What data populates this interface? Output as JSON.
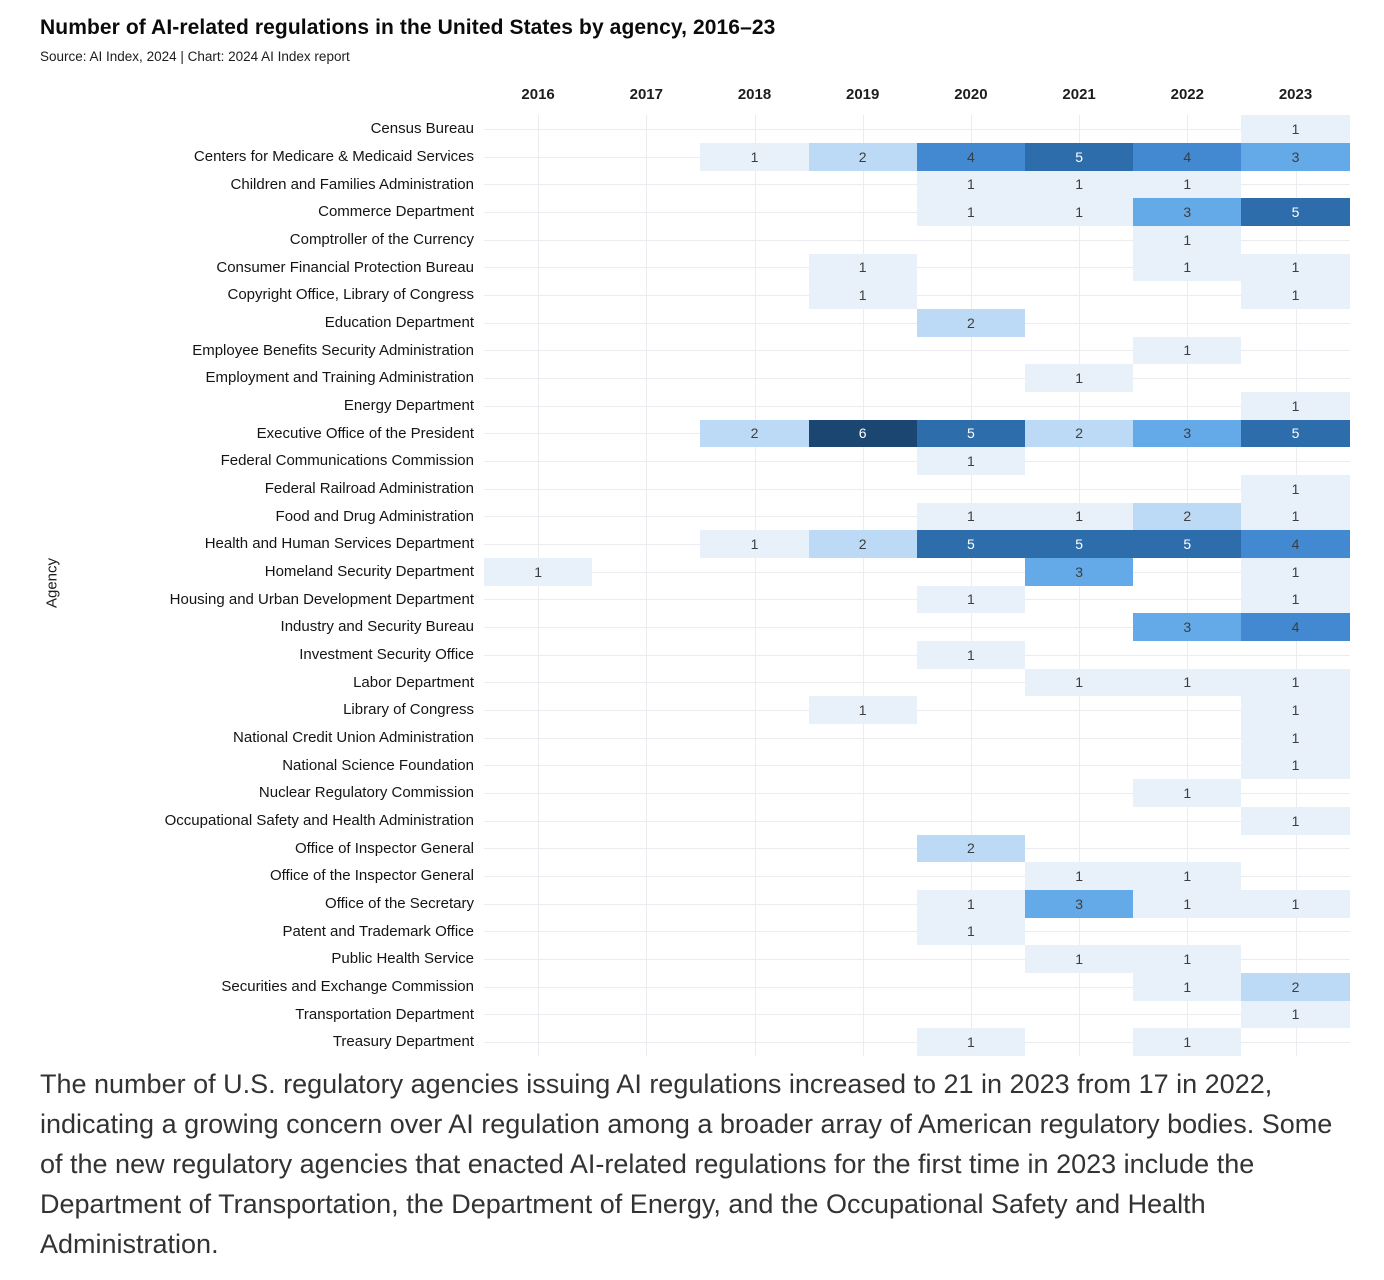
{
  "header": {
    "title": "Number of AI-related regulations in the United States by agency, 2016–23",
    "source": "Source: AI Index, 2024 | Chart: 2024 AI Index report"
  },
  "chart_data": {
    "type": "heatmap",
    "title": "Number of AI-related regulations in the United States by agency, 2016–23",
    "xlabel": "",
    "ylabel": "Agency",
    "x": [
      "2016",
      "2017",
      "2018",
      "2019",
      "2020",
      "2021",
      "2022",
      "2023"
    ],
    "legend": "none",
    "grid": "on",
    "value_range": [
      1,
      6
    ],
    "rows": [
      {
        "agency": "Census Bureau",
        "values": [
          null,
          null,
          null,
          null,
          null,
          null,
          null,
          1
        ]
      },
      {
        "agency": "Centers for Medicare & Medicaid Services",
        "values": [
          null,
          null,
          1,
          2,
          4,
          5,
          4,
          3
        ]
      },
      {
        "agency": "Children and Families Administration",
        "values": [
          null,
          null,
          null,
          null,
          1,
          1,
          1,
          null
        ]
      },
      {
        "agency": "Commerce Department",
        "values": [
          null,
          null,
          null,
          null,
          1,
          1,
          3,
          5
        ]
      },
      {
        "agency": "Comptroller of the Currency",
        "values": [
          null,
          null,
          null,
          null,
          null,
          null,
          1,
          null
        ]
      },
      {
        "agency": "Consumer Financial Protection Bureau",
        "values": [
          null,
          null,
          null,
          1,
          null,
          null,
          1,
          1
        ]
      },
      {
        "agency": "Copyright Office, Library of Congress",
        "values": [
          null,
          null,
          null,
          1,
          null,
          null,
          null,
          1
        ]
      },
      {
        "agency": "Education Department",
        "values": [
          null,
          null,
          null,
          null,
          2,
          null,
          null,
          null
        ]
      },
      {
        "agency": "Employee Benefits Security Administration",
        "values": [
          null,
          null,
          null,
          null,
          null,
          null,
          1,
          null
        ]
      },
      {
        "agency": "Employment and Training Administration",
        "values": [
          null,
          null,
          null,
          null,
          null,
          1,
          null,
          null
        ]
      },
      {
        "agency": "Energy Department",
        "values": [
          null,
          null,
          null,
          null,
          null,
          null,
          null,
          1
        ]
      },
      {
        "agency": "Executive Office of the President",
        "values": [
          null,
          null,
          2,
          6,
          5,
          2,
          3,
          5
        ]
      },
      {
        "agency": "Federal Communications Commission",
        "values": [
          null,
          null,
          null,
          null,
          1,
          null,
          null,
          null
        ]
      },
      {
        "agency": "Federal Railroad Administration",
        "values": [
          null,
          null,
          null,
          null,
          null,
          null,
          null,
          1
        ]
      },
      {
        "agency": "Food and Drug Administration",
        "values": [
          null,
          null,
          null,
          null,
          1,
          1,
          2,
          1
        ]
      },
      {
        "agency": "Health and Human Services Department",
        "values": [
          null,
          null,
          1,
          2,
          5,
          5,
          5,
          4
        ]
      },
      {
        "agency": "Homeland Security Department",
        "values": [
          1,
          null,
          null,
          null,
          null,
          3,
          null,
          1
        ]
      },
      {
        "agency": "Housing and Urban Development Department",
        "values": [
          null,
          null,
          null,
          null,
          1,
          null,
          null,
          1
        ]
      },
      {
        "agency": "Industry and Security Bureau",
        "values": [
          null,
          null,
          null,
          null,
          null,
          null,
          3,
          4
        ]
      },
      {
        "agency": "Investment Security Office",
        "values": [
          null,
          null,
          null,
          null,
          1,
          null,
          null,
          null
        ]
      },
      {
        "agency": "Labor Department",
        "values": [
          null,
          null,
          null,
          null,
          null,
          1,
          1,
          1
        ]
      },
      {
        "agency": "Library of Congress",
        "values": [
          null,
          null,
          null,
          1,
          null,
          null,
          null,
          1
        ]
      },
      {
        "agency": "National Credit Union Administration",
        "values": [
          null,
          null,
          null,
          null,
          null,
          null,
          null,
          1
        ]
      },
      {
        "agency": "National Science Foundation",
        "values": [
          null,
          null,
          null,
          null,
          null,
          null,
          null,
          1
        ]
      },
      {
        "agency": "Nuclear Regulatory Commission",
        "values": [
          null,
          null,
          null,
          null,
          null,
          null,
          1,
          null
        ]
      },
      {
        "agency": "Occupational Safety and Health Administration",
        "values": [
          null,
          null,
          null,
          null,
          null,
          null,
          null,
          1
        ]
      },
      {
        "agency": "Office of Inspector General",
        "values": [
          null,
          null,
          null,
          null,
          2,
          null,
          null,
          null
        ]
      },
      {
        "agency": "Office of the Inspector General",
        "values": [
          null,
          null,
          null,
          null,
          null,
          1,
          1,
          null
        ]
      },
      {
        "agency": "Office of the Secretary",
        "values": [
          null,
          null,
          null,
          null,
          1,
          3,
          1,
          1
        ]
      },
      {
        "agency": "Patent and Trademark Office",
        "values": [
          null,
          null,
          null,
          null,
          1,
          null,
          null,
          null
        ]
      },
      {
        "agency": "Public Health Service",
        "values": [
          null,
          null,
          null,
          null,
          null,
          1,
          1,
          null
        ]
      },
      {
        "agency": "Securities and Exchange Commission",
        "values": [
          null,
          null,
          null,
          null,
          null,
          null,
          1,
          2
        ]
      },
      {
        "agency": "Transportation Department",
        "values": [
          null,
          null,
          null,
          null,
          null,
          null,
          null,
          1
        ]
      },
      {
        "agency": "Treasury Department",
        "values": [
          null,
          null,
          null,
          null,
          1,
          null,
          1,
          null
        ]
      }
    ],
    "colors": {
      "value_1": "#e8f1fa",
      "value_2": "#bcdaf5",
      "value_3": "#64aae8",
      "value_4": "#4289d2",
      "value_5": "#2d6dab",
      "value_6": "#1b4672",
      "cell_text_dark": "#3d3d3d",
      "cell_text_light": "#ffffff"
    }
  },
  "caption": {
    "text": "The number of U.S. regulatory agencies issuing AI regulations increased to 21 in 2023 from 17 in 2022, indicating a growing concern over AI regulation among a broader array of American regulatory bodies. Some of the new regulatory agencies that enacted AI-related regulations for the first time in 2023 include the Department of Transportation, the Department of Energy, and the Occupational Safety and Health Administration."
  }
}
